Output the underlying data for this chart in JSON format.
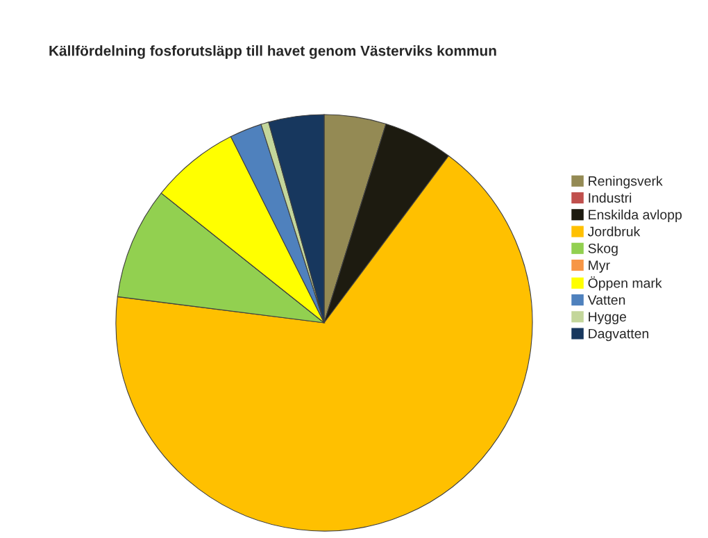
{
  "chart_data": {
    "type": "pie",
    "title": "Källfördelning fosforutsläpp till havet genom Västerviks kommun",
    "categories": [
      "Reningsverk",
      "Industri",
      "Enskilda avlopp",
      "Jordbruk",
      "Skog",
      "Myr",
      "Öppen mark",
      "Vatten",
      "Hygge",
      "Dagvatten"
    ],
    "values": [
      4.8,
      0,
      5.4,
      66.8,
      8.7,
      0,
      6.9,
      2.5,
      0.6,
      4.3
    ],
    "colors": [
      "#948a54",
      "#c0504d",
      "#1d1b10",
      "#ffc000",
      "#92d050",
      "#f79646",
      "#ffff00",
      "#4f81bd",
      "#c3d69b",
      "#17375e"
    ],
    "legend": "right"
  }
}
